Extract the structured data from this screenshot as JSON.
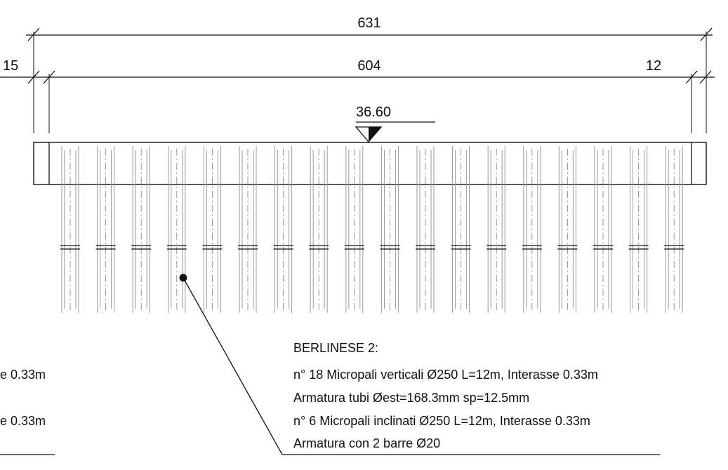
{
  "dimensions": {
    "overall": "631",
    "inner": "604",
    "left_edge": "15",
    "right_edge": "12"
  },
  "level": {
    "elevation": "36.60"
  },
  "piles": {
    "count": 18
  },
  "note_right": {
    "title": "BERLINESE 2:",
    "line1": "n° 18 Micropali verticali Ø250 L=12m, Interasse 0.33m",
    "line2": "Armatura tubi Øest=168.3mm sp=12.5mm",
    "line3": "n° 6 Micropali inclinati Ø250 L=12m, Interasse 0.33m",
    "line4": "Armatura con 2 barre Ø20"
  },
  "note_left_partial": {
    "line1": "e 0.33m",
    "line2": "e 0.33m"
  }
}
